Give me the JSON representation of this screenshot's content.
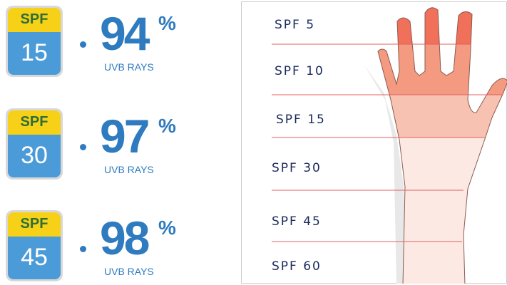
{
  "left_rows": [
    {
      "badge_top": "SPF",
      "badge_number": "15",
      "percent": "94",
      "percent_sign": "%",
      "caption": "UVB RAYS"
    },
    {
      "badge_top": "SPF",
      "badge_number": "30",
      "percent": "97",
      "percent_sign": "%",
      "caption": "UVB RAYS"
    },
    {
      "badge_top": "SPF",
      "badge_number": "45",
      "percent": "98",
      "percent_sign": "%",
      "caption": "UVB RAYS"
    }
  ],
  "hand_scale": {
    "labels": [
      "SPF 5",
      "SPF 10",
      "SPF 15",
      "SPF 30",
      "SPF 45",
      "SPF 60"
    ]
  },
  "colors": {
    "accent_blue": "#2e7bbf",
    "badge_yellow": "#f7d117",
    "badge_blue": "#4a9bd8",
    "line_red": "#e06060"
  }
}
